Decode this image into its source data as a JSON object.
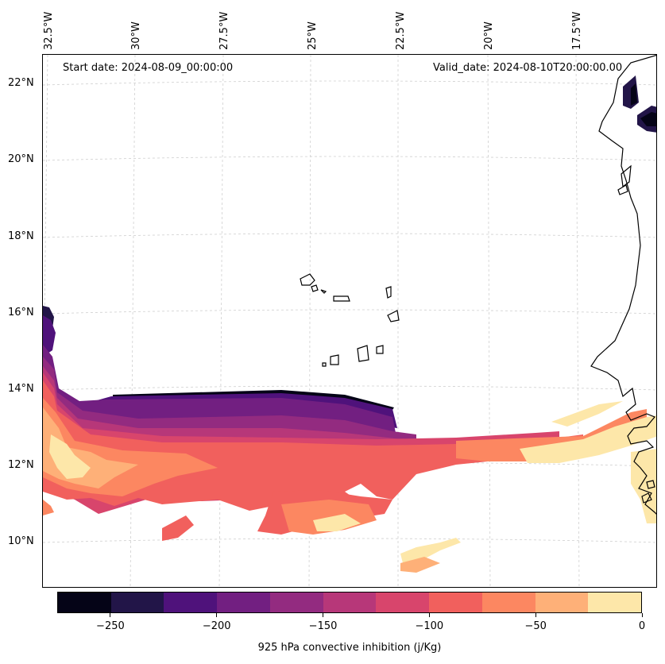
{
  "map": {
    "start_date": "Start date: 2024-08-09_00:00:00",
    "valid_date": "Valid_date: 2024-08-10T20:00:00.00",
    "lon_labels": [
      "32.5°W",
      "30°W",
      "27.5°W",
      "25°W",
      "22.5°W",
      "20°W",
      "17.5°W"
    ],
    "lat_labels": [
      "22°N",
      "20°N",
      "18°N",
      "16°N",
      "14°N",
      "12°N",
      "10°N"
    ],
    "gridlines": "dashed",
    "coastline_color": "#000000"
  },
  "colorbar": {
    "title": "925 hPa convective inhibition (j/Kg)",
    "tick_labels": [
      "−250",
      "−200",
      "−150",
      "−100",
      "−50",
      "0"
    ],
    "ticks": [
      -250,
      -200,
      -150,
      -100,
      -50,
      0
    ],
    "levels": [
      -275,
      -250,
      -225,
      -200,
      -175,
      -150,
      -125,
      -100,
      -75,
      -50,
      -25,
      0
    ],
    "colors": [
      "#050417",
      "#221548",
      "#4f127b",
      "#721f81",
      "#932b80",
      "#b73779",
      "#d8456c",
      "#f1605d",
      "#fc8761",
      "#feb078",
      "#fde7a9"
    ],
    "orientation": "horizontal",
    "placement": "bottom"
  }
}
